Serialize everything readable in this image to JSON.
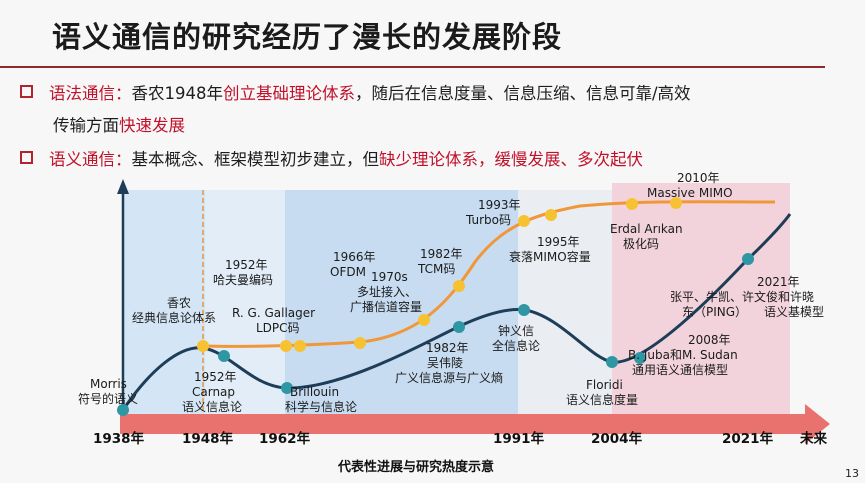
{
  "title": "语义通信的研究经历了漫长的发展阶段",
  "bullets": [
    {
      "head": "语法通信：",
      "line1_a": "香农1948年",
      "line1_red": "创立基础理论体系",
      "line1_b": "，随后在信息度量、信息压缩、信息可靠/高效",
      "line2_a": "传输方面",
      "line2_red": "快速发展"
    },
    {
      "head": "语义通信：",
      "text_a": "基本概念、框架模型初步建立，但",
      "text_red": "缺少理论体系，缓慢发展、多次起伏"
    }
  ],
  "timeline": {
    "years": [
      "1938年",
      "1948年",
      "1962年",
      "1991年",
      "2004年",
      "2021年",
      "未来"
    ],
    "caption": "代表性进展与研究热度示意"
  },
  "annotations": {
    "morris_1": "Morris",
    "morris_2": "符号的语义",
    "shannon_1": "香农",
    "shannon_2": "经典信息论体系",
    "carnap_1": "1952年",
    "carnap_2": "Carnap",
    "carnap_3": "语义信息论",
    "huffman_1": "1952年",
    "huffman_2": "哈夫曼编码",
    "gallager_1": "R. G. Gallager",
    "gallager_2": "LDPC码",
    "ofdm_1": "1966年",
    "ofdm_2": "OFDM",
    "brillouin_1": "Brillouin",
    "brillouin_2": "科学与信息论",
    "multi_1": "1970s",
    "multi_2": "多址接入、",
    "multi_3": "广播信道容量",
    "tcm_1": "1982年",
    "tcm_2": "TCM码",
    "wu_1": "1982年",
    "wu_2": "吴伟陵",
    "wu_3": "广义信息源与广义熵",
    "turbo_1": "1993年",
    "turbo_2": "Turbo码",
    "zhong_1": "钟义信",
    "zhong_2": "全信息论",
    "mimo_1": "1995年",
    "mimo_2": "衰落MIMO容量",
    "arikan_1": "Erdal Arıkan",
    "arikan_2": "极化码",
    "massive_1": "2010年",
    "massive_2": "Massive MIMO",
    "floridi_1": "Floridi",
    "floridi_2": "语义信息度量",
    "juba_1": "2008年",
    "juba_2": "B. Juba和M. Sudan",
    "juba_3": "通用语义通信模型",
    "zhang_1": "张平、牛凯、许文俊和许晓",
    "zhang_2": "东（PING）",
    "zhang_3": "语义基模型",
    "y2021_1": "2021年"
  },
  "page_number": "13",
  "colors": {
    "syntax_curve": "#f0973a",
    "semantic_curve": "#1d3d58",
    "syntax_point": "#f7c232",
    "semantic_point": "#2f97a4",
    "accent_red": "#c0102a",
    "arrow": "#e9716e"
  }
}
